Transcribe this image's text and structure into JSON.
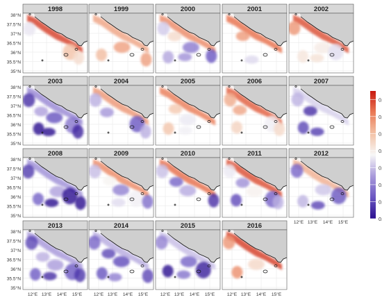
{
  "figure": {
    "panels": [
      {
        "year": "1998",
        "variant": 0,
        "tone": "warm"
      },
      {
        "year": "1999",
        "variant": 1,
        "tone": "warm"
      },
      {
        "year": "2000",
        "variant": 2,
        "tone": "mixed"
      },
      {
        "year": "2001",
        "variant": 3,
        "tone": "warm"
      },
      {
        "year": "2002",
        "variant": 4,
        "tone": "warm"
      },
      {
        "year": "2003",
        "variant": 5,
        "tone": "cool"
      },
      {
        "year": "2004",
        "variant": 6,
        "tone": "mixed"
      },
      {
        "year": "2005",
        "variant": 7,
        "tone": "warm"
      },
      {
        "year": "2006",
        "variant": 8,
        "tone": "warm"
      },
      {
        "year": "2007",
        "variant": 9,
        "tone": "cool"
      },
      {
        "year": "2008",
        "variant": 10,
        "tone": "cool"
      },
      {
        "year": "2009",
        "variant": 11,
        "tone": "mixed"
      },
      {
        "year": "2010",
        "variant": 12,
        "tone": "light"
      },
      {
        "year": "2011",
        "variant": 13,
        "tone": "light"
      },
      {
        "year": "2012",
        "variant": 14,
        "tone": "light"
      },
      {
        "year": "2013",
        "variant": 15,
        "tone": "cool"
      },
      {
        "year": "2014",
        "variant": 16,
        "tone": "cool"
      },
      {
        "year": "2015",
        "variant": 17,
        "tone": "cool"
      },
      {
        "year": "2016",
        "variant": 18,
        "tone": "warm"
      }
    ],
    "lat_labels": [
      "38°N",
      "37.5°N",
      "37°N",
      "36.5°N",
      "36°N",
      "35.5°N",
      "35°N"
    ],
    "lon_labels": [
      "12°E",
      "13°E",
      "14°E",
      "15°E"
    ],
    "colorbar": {
      "ticks": [
        "0.8",
        "0.7",
        "0.6",
        "0.5",
        "0.4",
        "0.3",
        "0.2",
        "0.1"
      ],
      "range": [
        0.1,
        0.85
      ],
      "colors": [
        "#2b0f8f",
        "#6a56c2",
        "#a99adb",
        "#f7f7f7",
        "#f3c2a6",
        "#ea7a56",
        "#c8180f"
      ]
    },
    "colors": {
      "land": "#cfcfcf",
      "strip": "#d8d8d8",
      "grid": "#e6e6e6",
      "frame": "#555555"
    }
  }
}
